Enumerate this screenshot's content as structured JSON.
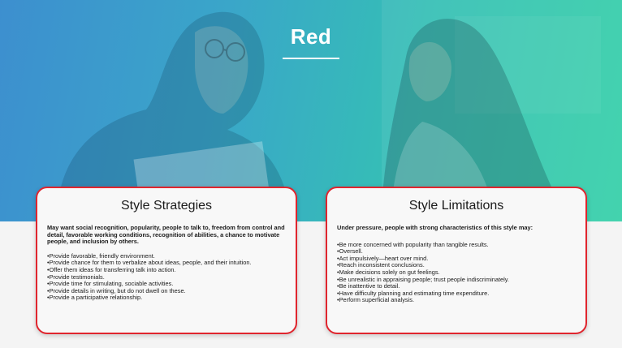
{
  "hero": {
    "title": "Red"
  },
  "strategies": {
    "title": "Style Strategies",
    "intro": "May want social recognition, popularity, people to talk to, freedom from control and detail, favorable working conditions, recognition of abilities, a chance to motivate people, and inclusion by others.",
    "bullets": [
      "•Provide favorable, friendly environment.",
      "•Provide chance for them to verbalize about ideas, people, and their intuition.",
      "•Offer them ideas for transferring talk into action.",
      "•Provide testimonials.",
      "•Provide time for stimulating, sociable activities.",
      "•Provide details in writing, but do not dwell on these.",
      "•Provide a participative relationship."
    ]
  },
  "limitations": {
    "title": "Style Limitations",
    "intro": "Under pressure, people with strong characteristics of this style may:",
    "bullets": [
      "•Be more concerned with popularity than tangible results.",
      "•Oversell.",
      "•Act impulsively—heart over mind.",
      "•Reach inconsistent conclusions.",
      "•Make decisions solely on gut feelings.",
      "•Be unrealistic in appraising people; trust people indiscriminately.",
      "•Be inattentive to detail.",
      "•Have difficulty planning and estimating time expenditure.",
      "•Perform superficial analysis."
    ]
  },
  "colors": {
    "accent": "#e0252e",
    "gradient_start": "#3d8fcf",
    "gradient_end": "#35d0a8"
  }
}
